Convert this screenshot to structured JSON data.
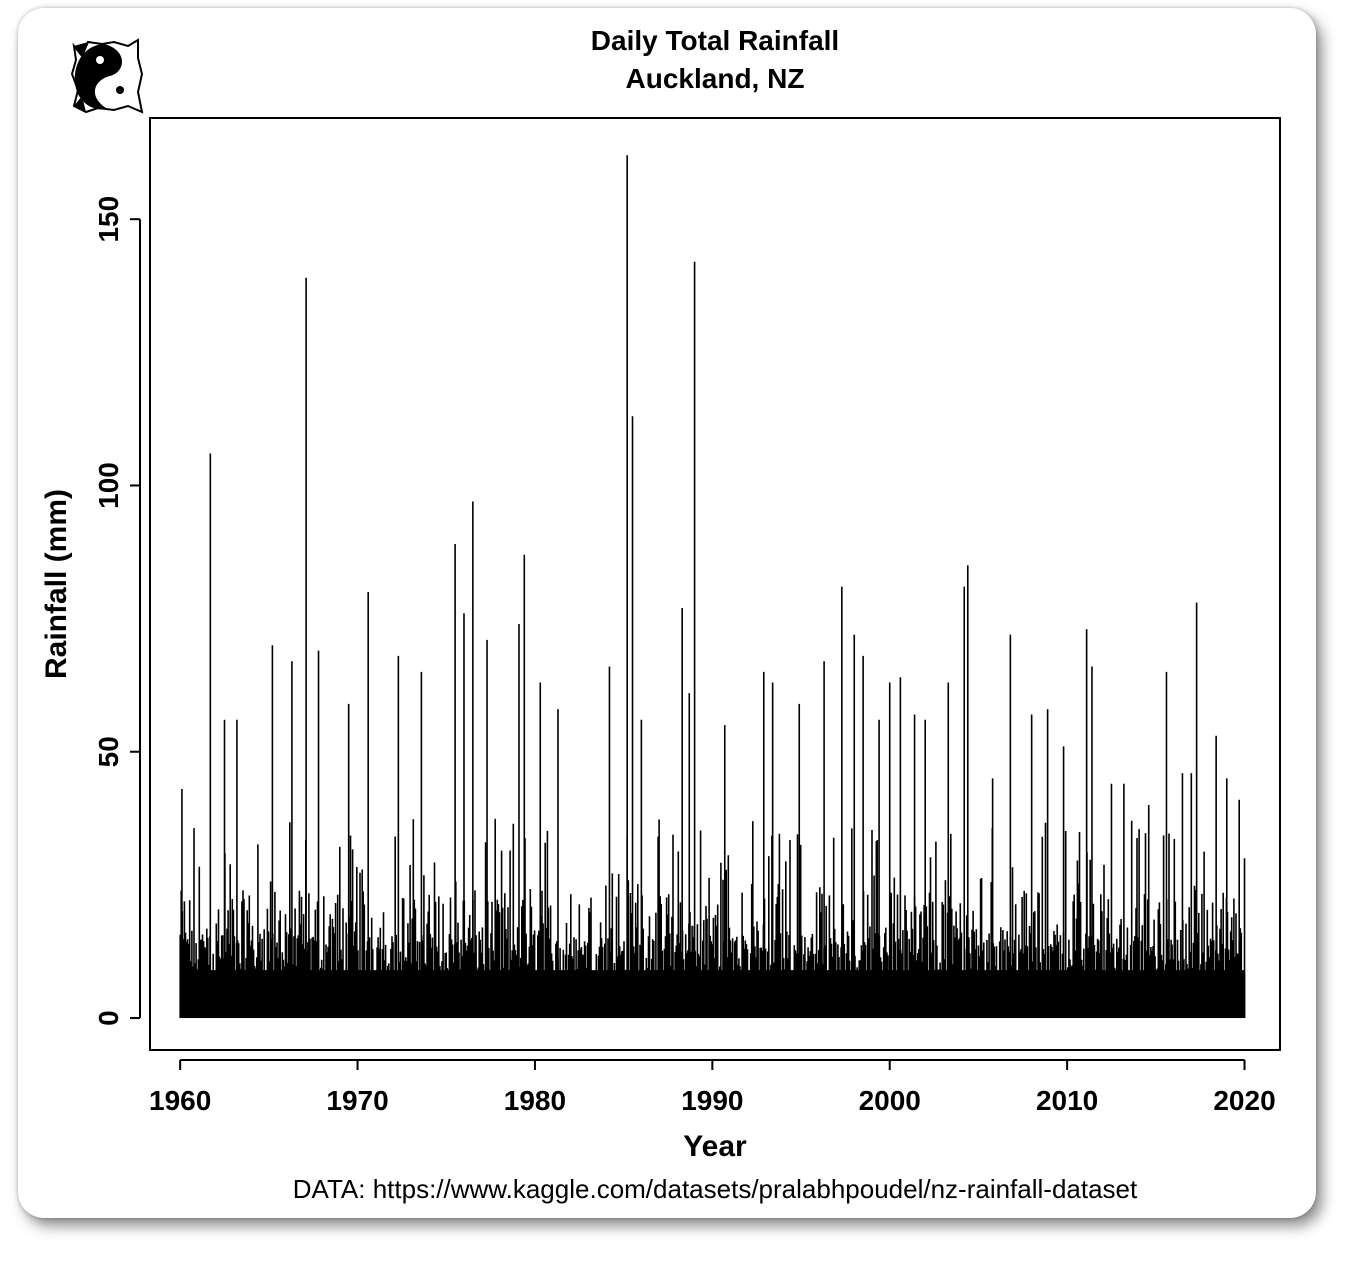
{
  "colors": {
    "background": "#ffffff",
    "bars": "#000000",
    "axis": "#000000"
  },
  "logo": {
    "icon": "yin-yang-cat-logo-icon"
  },
  "chart_data": {
    "type": "bar",
    "title": "Daily Total Rainfall",
    "subtitle": "Auckland, NZ",
    "xlabel": "Year",
    "ylabel": "Rainfall (mm)",
    "caption": "DATA: https://www.kaggle.com/datasets/pralabhpoudel/nz-rainfall-dataset",
    "xlim": [
      1958.3,
      2022.0
    ],
    "ylim": [
      -6,
      169
    ],
    "xticks": [
      "1960",
      "1970",
      "1980",
      "1990",
      "2000",
      "2010",
      "2020"
    ],
    "yticks": [
      "0",
      "50",
      "100",
      "150"
    ],
    "grid": false,
    "x_range": [
      1960.0,
      2020.0
    ],
    "notable_peaks": {
      "x": [
        1960.1,
        1961.7,
        1962.5,
        1963.2,
        1965.2,
        1966.3,
        1967.1,
        1967.8,
        1969.5,
        1970.6,
        1972.3,
        1973.6,
        1975.5,
        1976.0,
        1976.5,
        1977.3,
        1979.1,
        1979.4,
        1980.3,
        1981.3,
        1984.2,
        1985.2,
        1985.5,
        1986.0,
        1988.3,
        1988.7,
        1989.0,
        1990.7,
        1992.9,
        1993.4,
        1994.9,
        1996.3,
        1997.3,
        1998.0,
        1998.5,
        1999.4,
        2000.0,
        2000.6,
        2001.4,
        2002.0,
        2003.3,
        2004.2,
        2004.4,
        2005.8,
        2006.8,
        2008.0,
        2008.9,
        2009.8,
        2011.1,
        2011.4,
        2012.5,
        2013.2,
        2014.6,
        2015.6,
        2016.5,
        2017.0,
        2017.3,
        2018.4,
        2019.0,
        2019.7,
        2020.0
      ],
      "values": [
        43,
        106,
        56,
        56,
        70,
        67,
        139,
        69,
        59,
        80,
        68,
        65,
        89,
        76,
        97,
        71,
        74,
        87,
        63,
        58,
        66,
        162,
        113,
        56,
        77,
        61,
        142,
        55,
        65,
        63,
        59,
        67,
        81,
        72,
        68,
        56,
        63,
        64,
        57,
        56,
        63,
        81,
        85,
        45,
        72,
        57,
        58,
        51,
        73,
        66,
        44,
        44,
        40,
        65,
        46,
        46,
        78,
        53,
        45,
        41,
        30
      ]
    }
  }
}
